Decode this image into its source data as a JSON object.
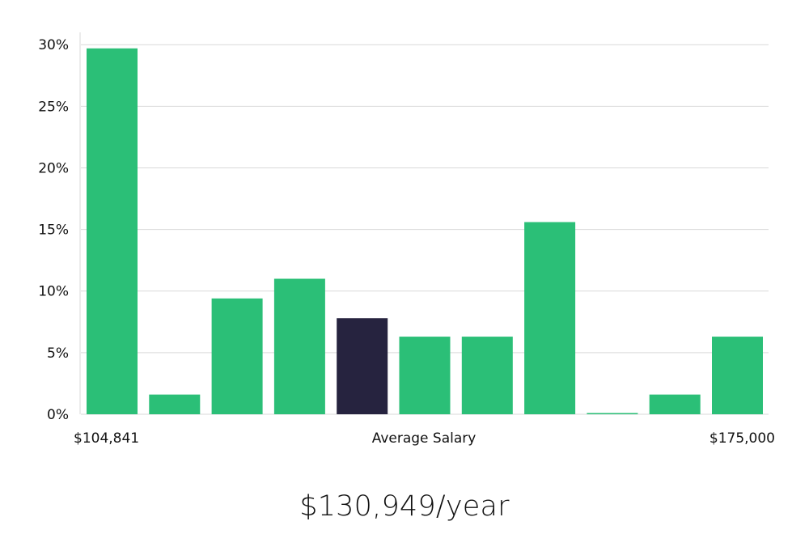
{
  "colors": {
    "bar": "#2bbf77",
    "highlight_bar": "#26233f",
    "grid": "#d9d9d9",
    "text": "#111111"
  },
  "x_labels": {
    "min": "$104,841",
    "center": "Average Salary",
    "max": "$175,000"
  },
  "salary": "$130,949/year",
  "chart_data": {
    "type": "bar",
    "categories": [
      "1",
      "2",
      "3",
      "4",
      "5",
      "6",
      "7",
      "8",
      "9",
      "10",
      "11"
    ],
    "values": [
      29.7,
      1.6,
      9.4,
      11.0,
      7.8,
      6.3,
      6.3,
      15.6,
      0.1,
      1.6,
      6.3
    ],
    "highlight_index": 4,
    "ylim": [
      0,
      31
    ],
    "yticks": [
      0,
      5,
      10,
      15,
      20,
      25,
      30
    ],
    "ytick_labels": [
      "0%",
      "5%",
      "10%",
      "15%",
      "20%",
      "25%",
      "30%"
    ],
    "grid": true
  }
}
